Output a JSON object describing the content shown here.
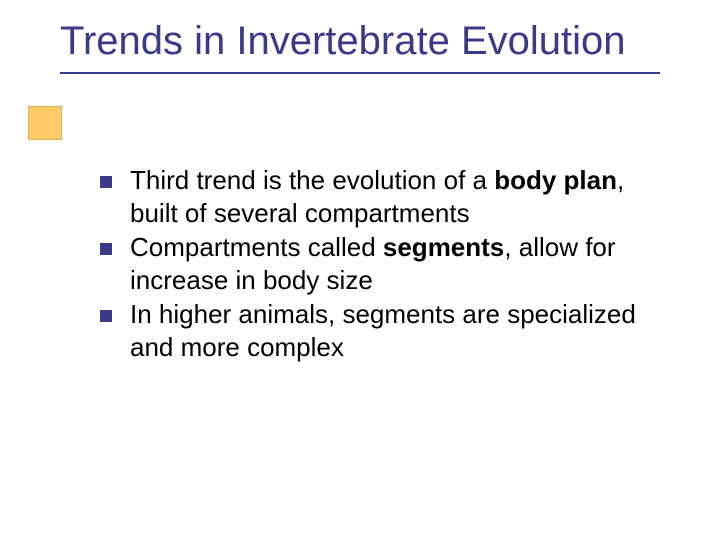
{
  "slide": {
    "title": "Trends in Invertebrate Evolution",
    "title_color": "#3a3a8a",
    "title_fontsize": 40,
    "underline_color": "#3a3a8a",
    "accent_box_color": "#ffcc66",
    "accent_box_border": "#d9b35a",
    "background_color": "#ffffff",
    "bullet_marker_color": "#3a3a8a",
    "body_fontsize": 26,
    "body_color": "#000000",
    "bullets": [
      {
        "pre": "Third trend is the evolution of a ",
        "bold": "body plan",
        "post": ", built of several compartments"
      },
      {
        "pre": "Compartments called ",
        "bold": "segments",
        "post": ", allow for increase in body size"
      },
      {
        "pre": "In higher animals, segments are specialized and more complex",
        "bold": "",
        "post": ""
      }
    ]
  }
}
